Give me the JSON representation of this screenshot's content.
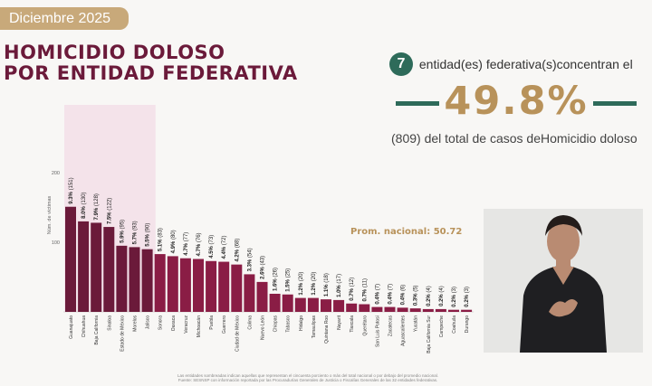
{
  "header": {
    "date": "Diciembre 2025",
    "title_line1": "HOMICIDIO DOLOSO",
    "title_line2": "POR ENTIDAD FEDERATIVA"
  },
  "summary": {
    "count": "7",
    "count_text": "entidad(es) federativa(s)concentran el",
    "percent": "49.8%",
    "bottom_text": "(809) del total de casos deHomicidio doloso"
  },
  "colors": {
    "highlight_band": "#f1d3e0",
    "above_avg": "#6b1a3a",
    "below_avg": "#8a1d45",
    "accent_green": "#2e6b5a",
    "accent_gold": "#b8925a"
  },
  "chart_data": {
    "type": "bar",
    "ylabel": "Núm. de víctimas",
    "ylim": [
      0,
      220
    ],
    "yticks": [
      100,
      200
    ],
    "average_label": "Prom. nacional: 50.72",
    "average": 50.72,
    "highlighted_count": 7,
    "categories": [
      "Guanajuato",
      "Chihuahua",
      "Baja California",
      "Sinaloa",
      "Estado de México",
      "Morelos",
      "Jalisco",
      "Sonora",
      "Oaxaca",
      "Veracruz",
      "Michoacán",
      "Puebla",
      "Guerrero",
      "Ciudad de México",
      "Colima",
      "Nuevo León",
      "Chiapas",
      "Tabasco",
      "Hidalgo",
      "Tamaulipas",
      "Quintana Roo",
      "Nayarit",
      "Tlaxcala",
      "Querétaro",
      "San Luis Potosí",
      "Zacatecas",
      "Aguascalientes",
      "Yucatán",
      "Baja California Sur",
      "Campeche",
      "Coahuila",
      "Durango"
    ],
    "values": [
      151,
      130,
      128,
      122,
      95,
      93,
      90,
      83,
      80,
      77,
      76,
      73,
      72,
      68,
      54,
      43,
      26,
      25,
      20,
      20,
      18,
      17,
      12,
      11,
      7,
      7,
      6,
      5,
      4,
      4,
      3,
      3
    ],
    "labels": [
      "9.3% (151)",
      "8.0% (130)",
      "7.9% (128)",
      "7.5% (122)",
      "5.9% (95)",
      "5.7% (93)",
      "5.5% (90)",
      "5.1% (83)",
      "4.9% (80)",
      "4.7% (77)",
      "4.7% (76)",
      "4.5% (73)",
      "4.4% (72)",
      "4.2% (68)",
      "3.3% (54)",
      "2.6% (43)",
      "1.6% (26)",
      "1.5% (25)",
      "1.2% (20)",
      "1.2% (20)",
      "1.1% (18)",
      "1.0% (17)",
      "0.7% (12)",
      "0.7% (11)",
      "0.4% (7)",
      "0.4% (7)",
      "0.4% (6)",
      "0.3% (5)",
      "0.2% (4)",
      "0.2% (4)",
      "0.2% (3)",
      "0.2% (3)"
    ]
  },
  "footnote": {
    "line1": "Las entidades sombreadas indican aquellas que representan el cincuenta porciento o más del total nacional o por debajo del promedio nacional.",
    "line2": "Fuente: SESNSP con información reportada por las Procuradurías Generales de Justicia o Fiscalías Generales de las 32 entidades federativas."
  }
}
